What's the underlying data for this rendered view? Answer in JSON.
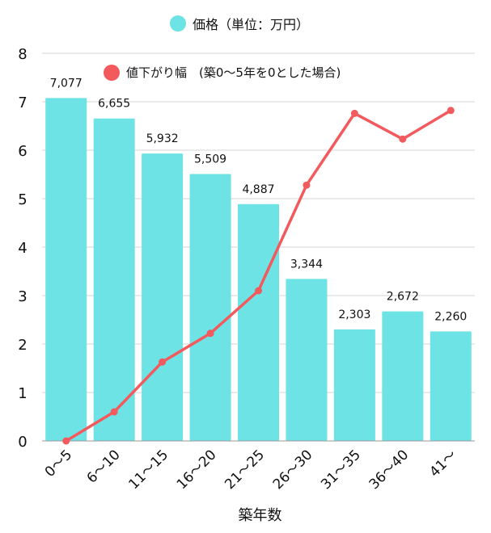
{
  "chart_data": {
    "type": "bar+line",
    "categories": [
      "0～5",
      "6～10",
      "11～15",
      "16～20",
      "21～25",
      "26～30",
      "31～35",
      "36～40",
      "41～"
    ],
    "series": [
      {
        "name": "価格（単位：万円）",
        "type": "bar",
        "color": "#6ee3e6",
        "values": [
          7077,
          6655,
          5932,
          5509,
          4887,
          3344,
          2303,
          2672,
          2260
        ],
        "data_labels": [
          "7,077",
          "6,655",
          "5,932",
          "5,509",
          "4,887",
          "3,344",
          "2,303",
          "2,672",
          "2,260"
        ]
      },
      {
        "name": "値下がり幅　(築0～5年を0とした場合)",
        "type": "line",
        "color": "#f25a5e",
        "values": [
          0,
          0.6,
          1.63,
          2.22,
          3.1,
          5.28,
          6.76,
          6.23,
          6.82
        ]
      }
    ],
    "xlabel": "築年数",
    "ylabel": "",
    "ylim": [
      0,
      8
    ],
    "yticks": [
      "0",
      "1",
      "2",
      "3",
      "4",
      "5",
      "6",
      "7",
      "8"
    ],
    "grid": true,
    "legend": "top"
  }
}
